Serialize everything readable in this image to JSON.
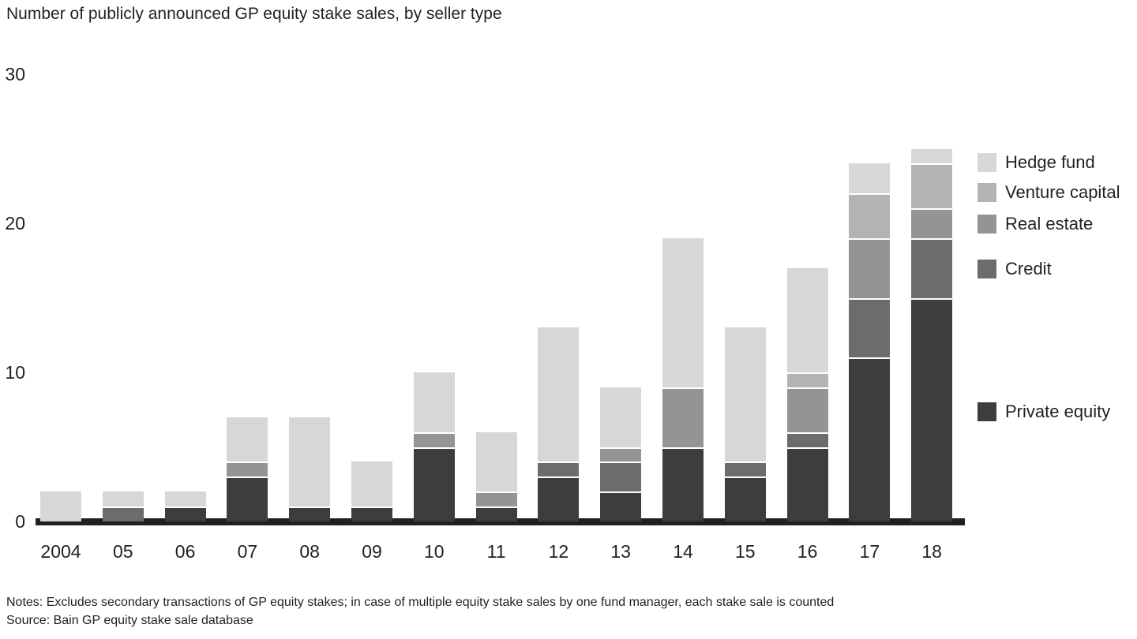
{
  "title": "Number of publicly announced GP equity stake sales, by seller type",
  "notes": "Notes: Excludes secondary transactions of GP equity stakes; in case of multiple equity stake sales by one fund manager, each stake sale is counted",
  "source": "Source: Bain GP equity stake sale database",
  "chart_data": {
    "type": "bar",
    "stacked": true,
    "title": "Number of publicly announced GP equity stake sales, by seller type",
    "categories": [
      "2004",
      "05",
      "06",
      "07",
      "08",
      "09",
      "10",
      "11",
      "12",
      "13",
      "14",
      "15",
      "16",
      "17",
      "18"
    ],
    "series": [
      {
        "name": "Private equity",
        "color": "#3d3d3f",
        "values": [
          0,
          0,
          1,
          3,
          1,
          1,
          5,
          1,
          3,
          2,
          5,
          3,
          5,
          11,
          15
        ]
      },
      {
        "name": "Credit",
        "color": "#6c6c6c",
        "values": [
          0,
          1,
          0,
          0,
          0,
          0,
          0,
          0,
          1,
          2,
          0,
          1,
          1,
          4,
          4
        ]
      },
      {
        "name": "Real estate",
        "color": "#949494",
        "values": [
          0,
          0,
          0,
          1,
          0,
          0,
          1,
          1,
          0,
          1,
          4,
          0,
          3,
          4,
          2
        ]
      },
      {
        "name": "Venture capital",
        "color": "#b3b3b3",
        "values": [
          0,
          0,
          0,
          0,
          0,
          0,
          0,
          0,
          0,
          0,
          0,
          0,
          1,
          3,
          3
        ]
      },
      {
        "name": "Hedge fund",
        "color": "#d7d7d7",
        "values": [
          2,
          1,
          1,
          3,
          6,
          3,
          4,
          4,
          9,
          4,
          10,
          9,
          7,
          2,
          1
        ]
      }
    ],
    "totals": [
      2,
      2,
      2,
      7,
      7,
      4,
      10,
      6,
      13,
      9,
      19,
      13,
      17,
      24,
      25
    ],
    "yticks": [
      0,
      10,
      20,
      30
    ],
    "ylim": [
      0,
      30
    ],
    "grid": false,
    "legend_position": "right",
    "legend": [
      {
        "label": "Hedge fund",
        "color": "#d7d7d7"
      },
      {
        "label": "Venture capital",
        "color": "#b3b3b3"
      },
      {
        "label": "Real estate",
        "color": "#949494"
      },
      {
        "label": "Credit",
        "color": "#6c6c6c"
      },
      {
        "label": "Private equity",
        "color": "#3d3d3f"
      }
    ],
    "axis_color": "#231f20"
  }
}
